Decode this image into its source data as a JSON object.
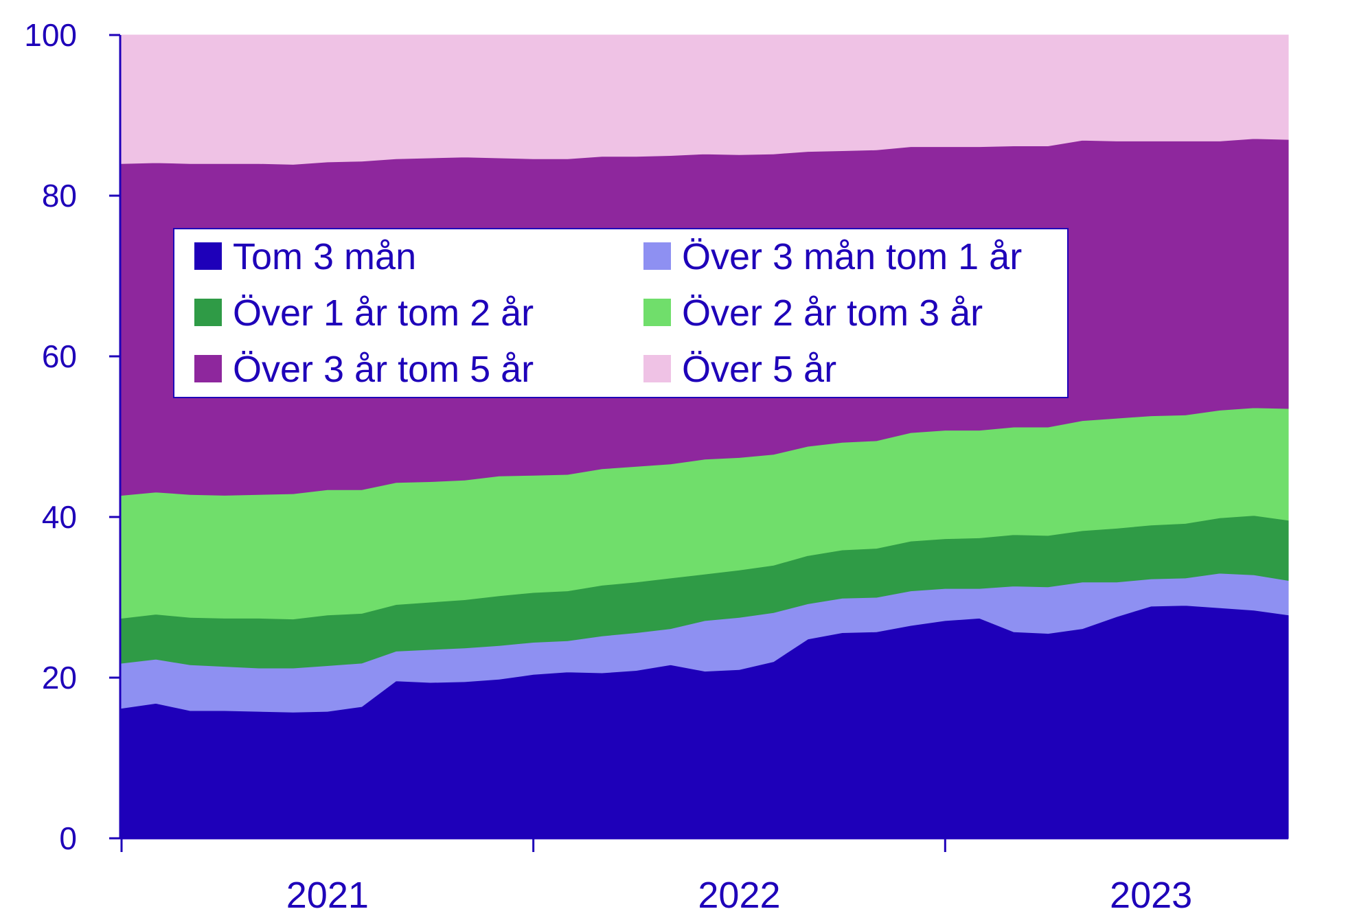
{
  "chart_data": {
    "type": "area",
    "stacked": true,
    "title": "",
    "xlabel": "",
    "ylabel": "",
    "ylim": [
      0,
      100
    ],
    "yticks": [
      0,
      20,
      40,
      60,
      80,
      100
    ],
    "xtick_labels": [
      "2021",
      "2022",
      "2023"
    ],
    "legend_position": "upper-left-inside",
    "legend_columns": 2,
    "n_points": 35,
    "series": [
      {
        "name": "Tom 3 mån",
        "color": "#1e00b9",
        "values": [
          16.2,
          16.8,
          15.9,
          15.9,
          15.8,
          15.7,
          15.8,
          16.4,
          19.6,
          19.4,
          19.5,
          19.8,
          20.4,
          20.7,
          20.6,
          20.9,
          21.6,
          20.8,
          21.0,
          22.0,
          24.8,
          25.6,
          25.7,
          26.5,
          27.1,
          27.4,
          25.7,
          25.5,
          26.1,
          27.6,
          28.9,
          29.0,
          28.7,
          28.4,
          27.8
        ]
      },
      {
        "name": "Över 3 mån tom 1 år",
        "color": "#8e90f2",
        "values": [
          5.6,
          5.5,
          5.7,
          5.5,
          5.4,
          5.5,
          5.7,
          5.4,
          3.7,
          4.1,
          4.2,
          4.2,
          4.0,
          3.9,
          4.6,
          4.7,
          4.5,
          6.3,
          6.5,
          6.1,
          4.4,
          4.3,
          4.3,
          4.3,
          4.0,
          3.7,
          5.7,
          5.8,
          5.8,
          4.3,
          3.4,
          3.4,
          4.3,
          4.4,
          4.3
        ]
      },
      {
        "name": "Över 1 år tom 2 år",
        "color": "#2f9b46",
        "values": [
          5.6,
          5.6,
          5.9,
          6.0,
          6.2,
          6.1,
          6.3,
          6.2,
          5.8,
          5.9,
          6.0,
          6.2,
          6.2,
          6.2,
          6.3,
          6.3,
          6.3,
          5.8,
          5.9,
          5.9,
          6.0,
          6.0,
          6.1,
          6.2,
          6.2,
          6.3,
          6.4,
          6.4,
          6.4,
          6.7,
          6.7,
          6.8,
          6.9,
          7.4,
          7.5
        ]
      },
      {
        "name": "Över 2 år tom 3 år",
        "color": "#70de6b",
        "values": [
          15.3,
          15.2,
          15.3,
          15.3,
          15.4,
          15.6,
          15.6,
          15.4,
          15.2,
          15.0,
          14.9,
          14.9,
          14.6,
          14.5,
          14.5,
          14.4,
          14.2,
          14.3,
          14.0,
          13.8,
          13.6,
          13.4,
          13.4,
          13.5,
          13.5,
          13.4,
          13.4,
          13.5,
          13.7,
          13.7,
          13.6,
          13.5,
          13.4,
          13.4,
          13.9
        ]
      },
      {
        "name": "Över 3 år tom 5 år",
        "color": "#8e279d",
        "values": [
          41.3,
          41.0,
          41.2,
          41.3,
          41.2,
          41.0,
          40.8,
          40.9,
          40.3,
          40.3,
          40.2,
          39.6,
          39.4,
          39.3,
          38.9,
          38.6,
          38.4,
          38.0,
          37.7,
          37.4,
          36.7,
          36.3,
          36.2,
          35.6,
          35.3,
          35.3,
          35.0,
          35.0,
          34.9,
          34.5,
          34.2,
          34.1,
          33.5,
          33.5,
          33.5
        ]
      },
      {
        "name": "Över 5 år",
        "color": "#efc2e5",
        "values": [
          16.0,
          15.9,
          16.0,
          16.0,
          16.0,
          16.1,
          15.8,
          15.7,
          15.4,
          15.3,
          15.2,
          15.3,
          15.4,
          15.4,
          15.1,
          15.1,
          15.0,
          14.8,
          14.9,
          14.8,
          14.5,
          14.4,
          14.3,
          13.9,
          13.9,
          13.9,
          13.8,
          13.8,
          13.1,
          13.2,
          13.2,
          13.2,
          13.2,
          12.9,
          13.0
        ]
      }
    ]
  },
  "colors": {
    "axis": "#1e00b9",
    "legend_border": "#1e00b9",
    "legend_background": "#ffffff"
  }
}
